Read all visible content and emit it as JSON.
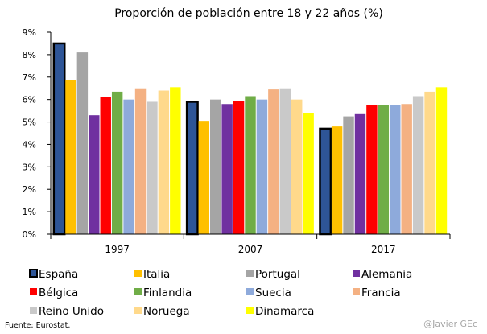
{
  "chart_data": {
    "type": "bar",
    "title": "Proporción de población entre 18 y 22 años (%)",
    "categories": [
      "1997",
      "2007",
      "2017"
    ],
    "ylim": [
      0,
      9
    ],
    "yticks": [
      "0%",
      "1%",
      "2%",
      "3%",
      "4%",
      "5%",
      "6%",
      "7%",
      "8%",
      "9%"
    ],
    "grid": false,
    "legend_position": "bottom",
    "series": [
      {
        "name": "España",
        "color": "#2e5597",
        "highlight": true,
        "values": [
          8.5,
          5.9,
          4.7
        ]
      },
      {
        "name": "Italia",
        "color": "#ffc000",
        "values": [
          6.85,
          5.05,
          4.8
        ]
      },
      {
        "name": "Portugal",
        "color": "#a5a5a5",
        "values": [
          8.1,
          6.0,
          5.25
        ]
      },
      {
        "name": "Alemania",
        "color": "#7030a0",
        "values": [
          5.3,
          5.8,
          5.35
        ]
      },
      {
        "name": "Bélgica",
        "color": "#ff0000",
        "values": [
          6.1,
          5.95,
          5.75
        ]
      },
      {
        "name": "Finlandia",
        "color": "#70ad47",
        "values": [
          6.35,
          6.15,
          5.75
        ]
      },
      {
        "name": "Suecia",
        "color": "#8eaadb",
        "values": [
          6.0,
          6.0,
          5.75
        ]
      },
      {
        "name": "Francia",
        "color": "#f4b183",
        "values": [
          6.5,
          6.45,
          5.8
        ]
      },
      {
        "name": "Reino Unido",
        "color": "#c9c9c9",
        "values": [
          5.9,
          6.5,
          6.15
        ]
      },
      {
        "name": "Noruega",
        "color": "#ffd98b",
        "values": [
          6.4,
          6.0,
          6.35
        ]
      },
      {
        "name": "Dinamarca",
        "color": "#ffff00",
        "values": [
          6.55,
          5.4,
          6.55
        ]
      }
    ]
  },
  "footer": {
    "source": "Fuente:  Eurostat.",
    "author": "@Javier GEc"
  }
}
